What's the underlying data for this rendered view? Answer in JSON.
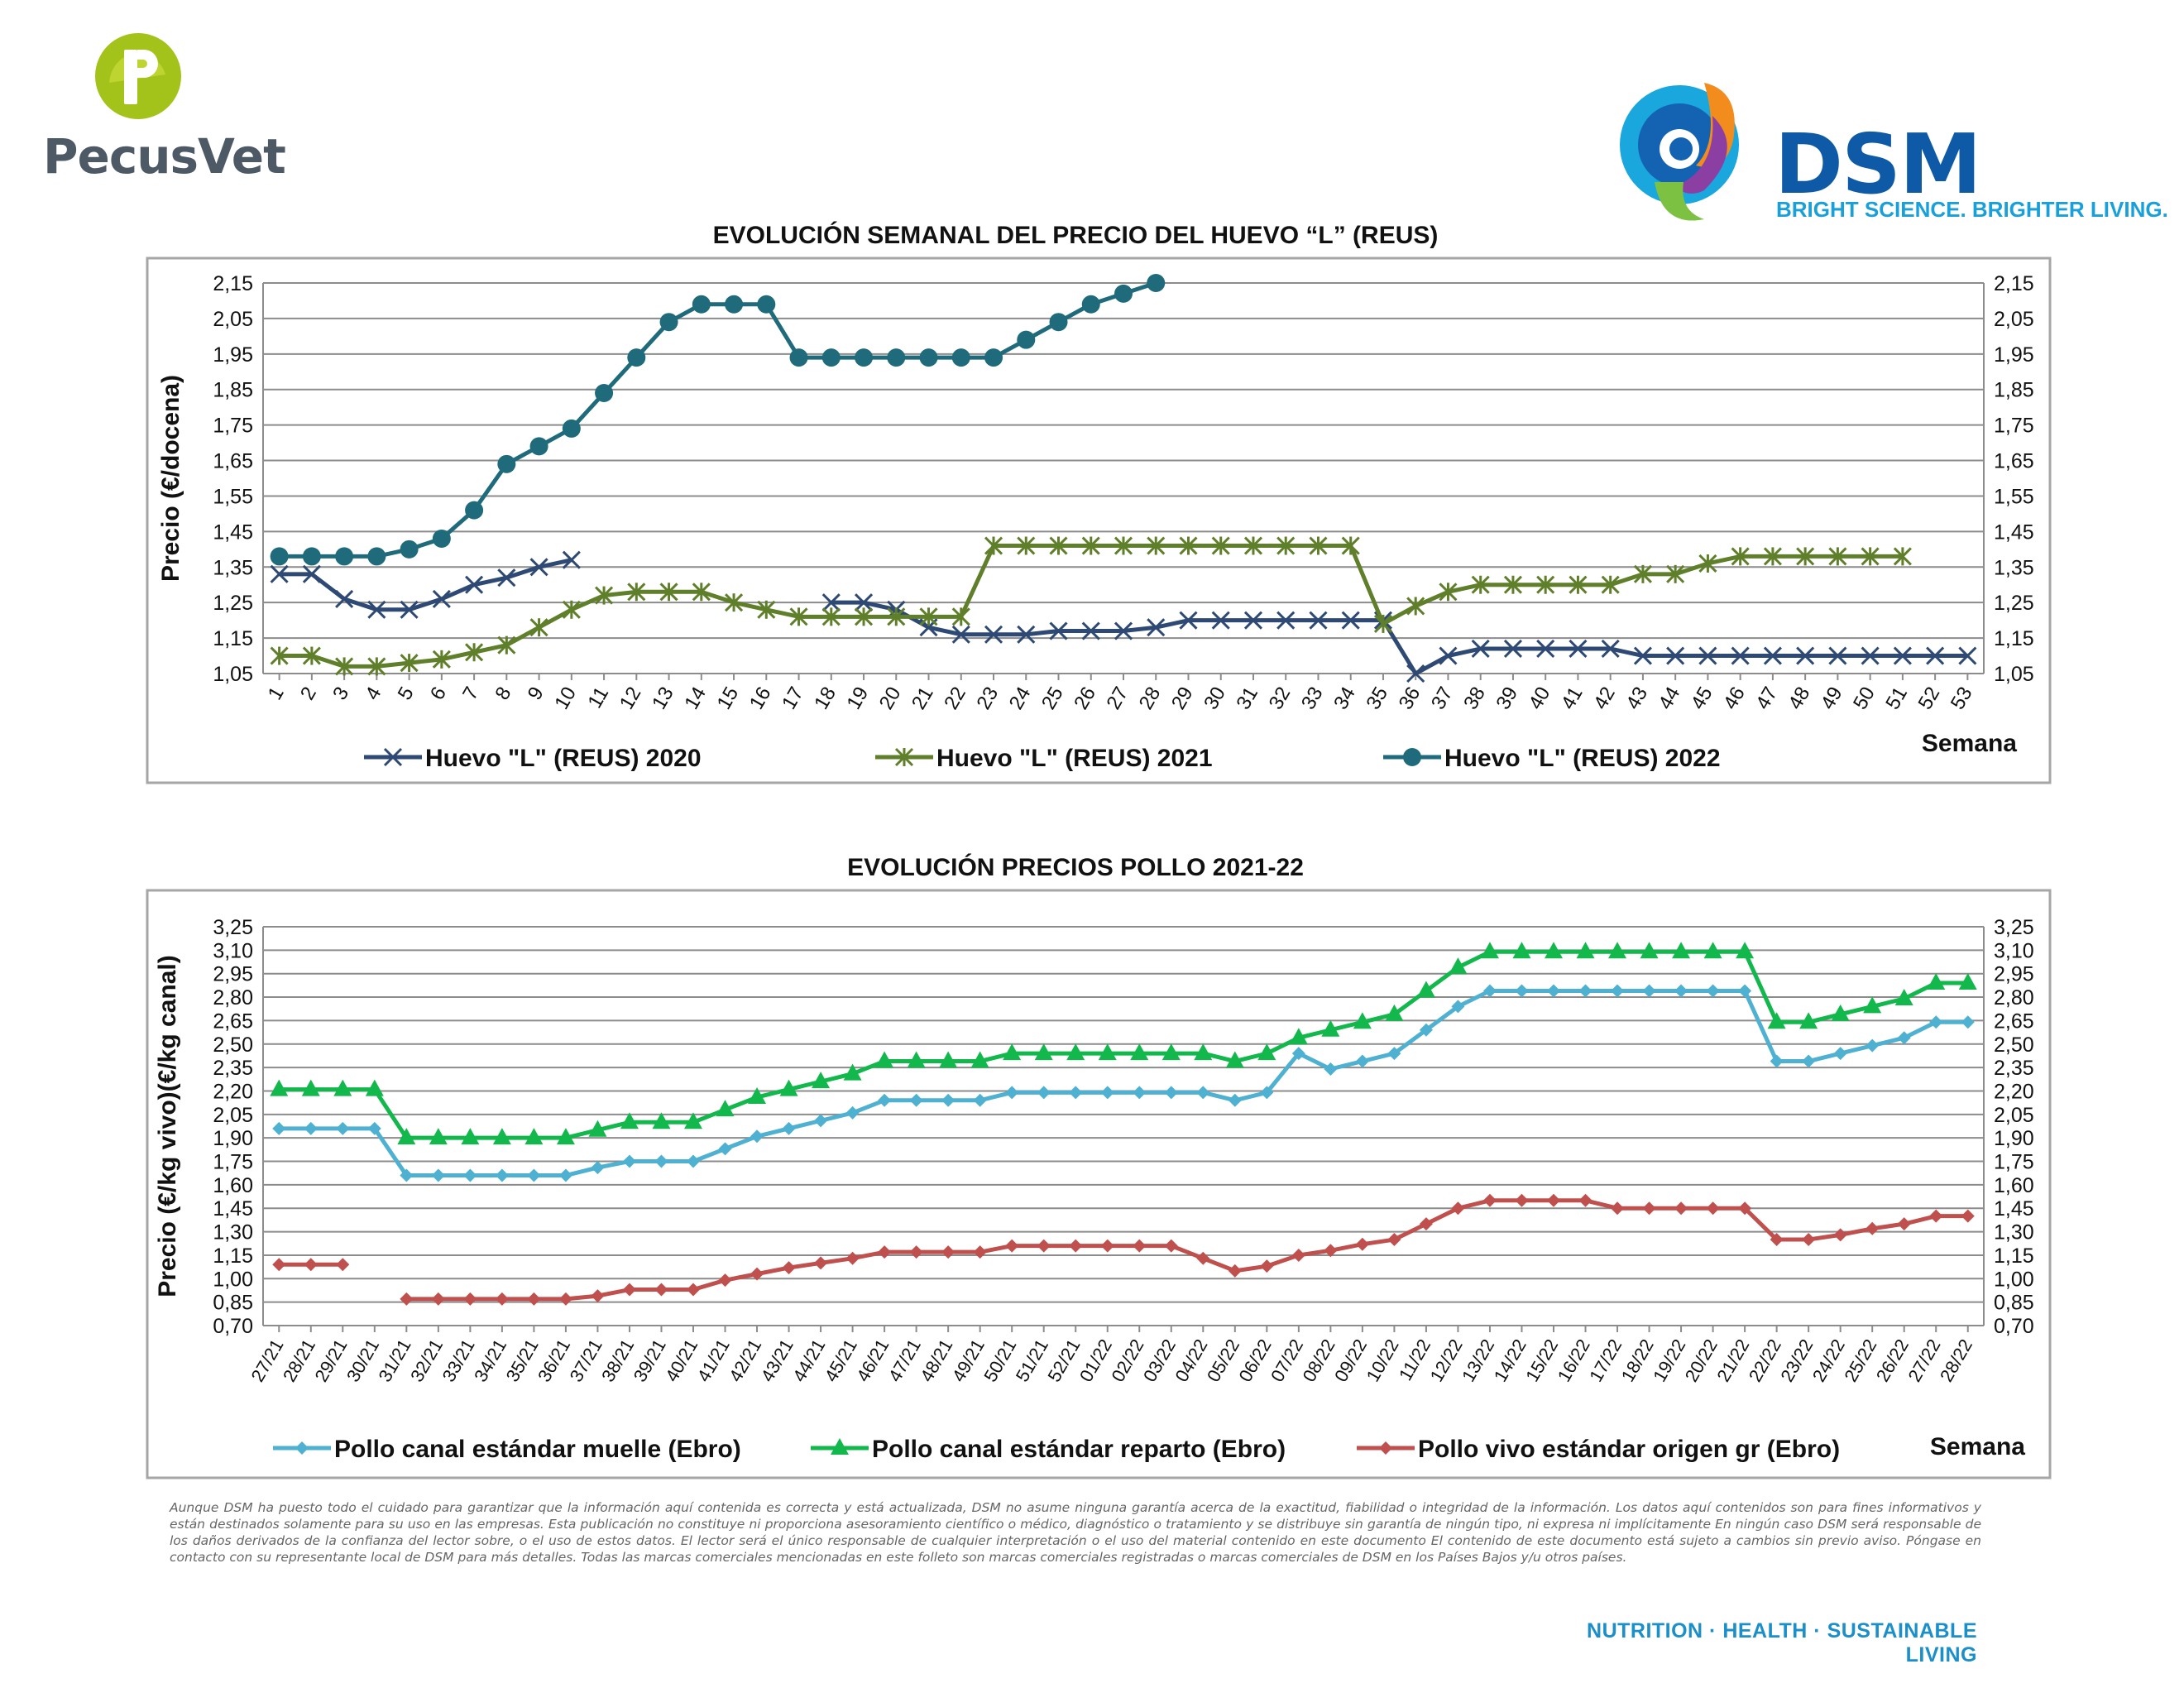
{
  "brand": {
    "pecusvet_name": "PecusVet",
    "dsm_name": "DSM",
    "dsm_tagline": "BRIGHT SCIENCE. BRIGHTER LIVING."
  },
  "colors": {
    "huevo_2020": "#2e4a74",
    "huevo_2021": "#5f7f2a",
    "huevo_2022": "#1f6b7c",
    "muelle": "#4fb1d1",
    "reparto": "#12b84c",
    "vivo": "#c0504d",
    "footer": "#1a8fc9"
  },
  "chart_data": [
    {
      "type": "line",
      "title": "EVOLUCIÓN SEMANAL DEL PRECIO DEL HUEVO “L” (REUS)",
      "ylabel": "Precio (€/docena)",
      "xlabel": "Semana",
      "ylim": [
        1.05,
        2.15
      ],
      "yticks": [
        "2,15",
        "2,05",
        "1,95",
        "1,85",
        "1,75",
        "1,65",
        "1,55",
        "1,45",
        "1,35",
        "1,25",
        "1,15",
        "1,05"
      ],
      "grid": true,
      "legend_position": "bottom",
      "categories": [
        "1",
        "2",
        "3",
        "4",
        "5",
        "6",
        "7",
        "8",
        "9",
        "10",
        "11",
        "12",
        "13",
        "14",
        "15",
        "16",
        "17",
        "18",
        "19",
        "20",
        "21",
        "22",
        "23",
        "24",
        "25",
        "26",
        "27",
        "28",
        "29",
        "30",
        "31",
        "32",
        "33",
        "34",
        "35",
        "36",
        "37",
        "38",
        "39",
        "40",
        "41",
        "42",
        "43",
        "44",
        "45",
        "46",
        "47",
        "48",
        "49",
        "50",
        "51",
        "52",
        "53"
      ],
      "series": [
        {
          "name": "Huevo \"L\" (REUS) 2020",
          "marker": "x",
          "values": [
            1.33,
            1.33,
            1.26,
            1.23,
            1.23,
            1.26,
            1.3,
            1.32,
            1.35,
            1.37,
            null,
            null,
            null,
            null,
            null,
            null,
            null,
            1.25,
            1.25,
            1.23,
            1.18,
            1.16,
            1.16,
            1.16,
            1.17,
            1.17,
            1.17,
            1.18,
            1.2,
            1.2,
            1.2,
            1.2,
            1.2,
            1.2,
            1.2,
            1.05,
            1.1,
            1.12,
            1.12,
            1.12,
            1.12,
            1.12,
            1.1,
            1.1,
            1.1,
            1.1,
            1.1,
            1.1,
            1.1,
            1.1,
            1.1,
            1.1,
            1.1
          ]
        },
        {
          "name": "Huevo \"L\" (REUS) 2021",
          "marker": "asterisk",
          "values": [
            1.1,
            1.1,
            1.07,
            1.07,
            1.08,
            1.09,
            1.11,
            1.13,
            1.18,
            1.23,
            1.27,
            1.28,
            1.28,
            1.28,
            1.25,
            1.23,
            1.21,
            1.21,
            1.21,
            1.21,
            1.21,
            1.21,
            1.41,
            1.41,
            1.41,
            1.41,
            1.41,
            1.41,
            1.41,
            1.41,
            1.41,
            1.41,
            1.41,
            1.41,
            1.19,
            1.24,
            1.28,
            1.3,
            1.3,
            1.3,
            1.3,
            1.3,
            1.33,
            1.33,
            1.36,
            1.38,
            1.38,
            1.38,
            1.38,
            1.38,
            1.38,
            null,
            null
          ]
        },
        {
          "name": "Huevo \"L\" (REUS) 2022",
          "marker": "circle",
          "values": [
            1.38,
            1.38,
            1.38,
            1.38,
            1.4,
            1.43,
            1.51,
            1.64,
            1.69,
            1.74,
            1.84,
            1.94,
            2.04,
            2.09,
            2.09,
            2.09,
            1.94,
            1.94,
            1.94,
            1.94,
            1.94,
            1.94,
            1.94,
            1.99,
            2.04,
            2.09,
            2.12,
            2.15,
            null,
            null,
            null,
            null,
            null,
            null,
            null,
            null,
            null,
            null,
            null,
            null,
            null,
            null,
            null,
            null,
            null,
            null,
            null,
            null,
            null,
            null,
            null,
            null,
            null
          ]
        }
      ]
    },
    {
      "type": "line",
      "title": "EVOLUCIÓN PRECIOS POLLO 2021-22",
      "ylabel": "Precio (€/kg vivo)(€/kg canal)",
      "xlabel": "Semana",
      "ylim": [
        0.7,
        3.25
      ],
      "yticks": [
        "3,25",
        "3,10",
        "2,95",
        "2,80",
        "2,65",
        "2,50",
        "2,35",
        "2,20",
        "2,05",
        "1,90",
        "1,75",
        "1,60",
        "1,45",
        "1,30",
        "1,15",
        "1,00",
        "0,85",
        "0,70"
      ],
      "grid": true,
      "legend_position": "bottom",
      "categories": [
        "27/21",
        "28/21",
        "29/21",
        "30/21",
        "31/21",
        "32/21",
        "33/21",
        "34/21",
        "35/21",
        "36/21",
        "37/21",
        "38/21",
        "39/21",
        "40/21",
        "41/21",
        "42/21",
        "43/21",
        "44/21",
        "45/21",
        "46/21",
        "47/21",
        "48/21",
        "49/21",
        "50/21",
        "51/21",
        "52/21",
        "01/22",
        "02/22",
        "03/22",
        "04/22",
        "05/22",
        "06/22",
        "07/22",
        "08/22",
        "09/22",
        "10/22",
        "11/22",
        "12/22",
        "13/22",
        "14/22",
        "15/22",
        "16/22",
        "17/22",
        "18/22",
        "19/22",
        "20/22",
        "21/22",
        "22/22",
        "23/22",
        "24/22",
        "25/22",
        "26/22",
        "27/22",
        "28/22"
      ],
      "series": [
        {
          "name": "Pollo canal estándar muelle (Ebro)",
          "marker": "diamond",
          "values": [
            1.96,
            1.96,
            1.96,
            1.96,
            1.66,
            1.66,
            1.66,
            1.66,
            1.66,
            1.66,
            1.71,
            1.75,
            1.75,
            1.75,
            1.83,
            1.91,
            1.96,
            2.01,
            2.06,
            2.14,
            2.14,
            2.14,
            2.14,
            2.19,
            2.19,
            2.19,
            2.19,
            2.19,
            2.19,
            2.19,
            2.14,
            2.19,
            2.44,
            2.34,
            2.39,
            2.44,
            2.59,
            2.74,
            2.84,
            2.84,
            2.84,
            2.84,
            2.84,
            2.84,
            2.84,
            2.84,
            2.84,
            2.39,
            2.39,
            2.44,
            2.49,
            2.54,
            2.64,
            2.64
          ]
        },
        {
          "name": "Pollo canal estándar reparto (Ebro)",
          "marker": "triangle",
          "values": [
            2.21,
            2.21,
            2.21,
            2.21,
            1.9,
            1.9,
            1.9,
            1.9,
            1.9,
            1.9,
            1.95,
            2.0,
            2.0,
            2.0,
            2.08,
            2.16,
            2.21,
            2.26,
            2.31,
            2.39,
            2.39,
            2.39,
            2.39,
            2.44,
            2.44,
            2.44,
            2.44,
            2.44,
            2.44,
            2.44,
            2.39,
            2.44,
            2.54,
            2.59,
            2.64,
            2.69,
            2.84,
            2.99,
            3.09,
            3.09,
            3.09,
            3.09,
            3.09,
            3.09,
            3.09,
            3.09,
            3.09,
            2.64,
            2.64,
            2.69,
            2.74,
            2.79,
            2.89,
            2.89
          ]
        },
        {
          "name": "Pollo vivo estándar origen gr (Ebro)",
          "marker": "diamond",
          "values": [
            1.09,
            1.09,
            1.09,
            null,
            0.87,
            0.87,
            0.87,
            0.87,
            0.87,
            0.87,
            0.89,
            0.93,
            0.93,
            0.93,
            0.99,
            1.03,
            1.07,
            1.1,
            1.13,
            1.17,
            1.17,
            1.17,
            1.17,
            1.21,
            1.21,
            1.21,
            1.21,
            1.21,
            1.21,
            1.13,
            1.05,
            1.08,
            1.15,
            1.18,
            1.22,
            1.25,
            1.35,
            1.45,
            1.5,
            1.5,
            1.5,
            1.5,
            1.45,
            1.45,
            1.45,
            1.45,
            1.45,
            1.25,
            1.25,
            1.28,
            1.32,
            1.35,
            1.4,
            1.4
          ]
        }
      ]
    }
  ],
  "disclaimer": "Aunque DSM ha puesto todo el cuidado para garantizar que la información aquí contenida es correcta y está actualizada, DSM no asume ninguna garantía acerca de la exactitud, fiabilidad o integridad de la información. Los datos aquí contenidos son para fines informativos y están destinados solamente para su uso en las empresas. Esta publicación no constituye ni proporciona asesoramiento científico o médico, diagnóstico o tratamiento y se distribuye sin garantía de ningún tipo, ni expresa ni implícitamente En ningún caso DSM será responsable de los daños derivados de la confianza del lector sobre, o el uso de estos datos. El lector será el único responsable de cualquier interpretación o el uso del material contenido en este documento El contenido de este documento está sujeto a cambios sin previo aviso. Póngase en contacto con su representante local de DSM para más detalles. Todas las marcas comerciales mencionadas en este folleto son marcas comerciales registradas o marcas comerciales de DSM en los Países Bajos y/u otros países.",
  "footer": "NUTRITION · HEALTH · SUSTAINABLE LIVING"
}
